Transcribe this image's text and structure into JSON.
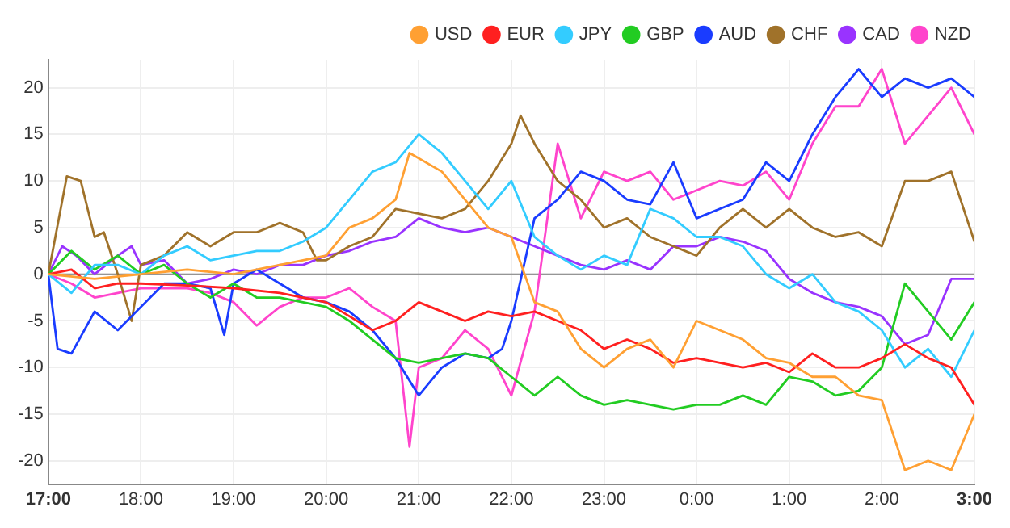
{
  "chart_data": {
    "type": "line",
    "xlim": [
      "--01-01T17:00",
      "--01-02T03:00"
    ],
    "xticks": [
      {
        "value": "--01-01T17:00",
        "label": "17:00"
      },
      {
        "value": "--01-01T18:00",
        "label": "18:00"
      },
      {
        "value": "--01-01T19:00",
        "label": "19:00"
      },
      {
        "value": "--01-01T20:00",
        "label": "20:00"
      },
      {
        "value": "--01-01T21:00",
        "label": "21:00"
      },
      {
        "value": "--01-01T22:00",
        "label": "22:00"
      },
      {
        "value": "--01-01T23:00",
        "label": "23:00"
      },
      {
        "value": "--01-02T00:00",
        "label": "0:00"
      },
      {
        "value": "--01-02T01:00",
        "label": "1:00"
      },
      {
        "value": "--01-02T02:00",
        "label": "2:00"
      },
      {
        "value": "--01-02T03:00",
        "label": "3:00"
      }
    ],
    "ylim": [
      -22.5,
      23
    ],
    "yticks": [
      -20,
      -15,
      -10,
      -5,
      0,
      5,
      10,
      15,
      20
    ],
    "grid": true,
    "legend": "top right",
    "marker": "none",
    "line_style": "solid",
    "ref_lines": [
      {
        "axis": "y",
        "value": 0,
        "color": "#777777"
      }
    ],
    "series": [
      {
        "name": "USD",
        "color": "#ffa033",
        "x": [
          "--01-01T17:00",
          "--01-01T17:30",
          "--01-01T18:00",
          "--01-01T18:30",
          "--01-01T19:00",
          "--01-01T19:30",
          "--01-01T19:45",
          "--01-01T20:00",
          "--01-01T20:15",
          "--01-01T20:30",
          "--01-01T20:45",
          "--01-01T20:54",
          "--01-01T21:15",
          "--01-01T21:30",
          "--01-01T21:45",
          "--01-01T22:00",
          "--01-01T22:15",
          "--01-01T22:30",
          "--01-01T22:45",
          "--01-01T23:00",
          "--01-01T23:15",
          "--01-01T23:30",
          "--01-01T23:45",
          "--01-02T00:00",
          "--01-02T00:15",
          "--01-02T00:30",
          "--01-02T00:45",
          "--01-02T01:00",
          "--01-02T01:15",
          "--01-02T01:30",
          "--01-02T01:45",
          "--01-02T02:00",
          "--01-02T02:15",
          "--01-02T02:30",
          "--01-02T02:45",
          "--01-02T03:00"
        ],
        "values": [
          0,
          -0.5,
          0,
          0.5,
          0,
          1,
          1.5,
          2,
          5,
          6,
          8,
          13,
          11,
          8,
          5,
          4,
          -3,
          -4,
          -8,
          -10,
          -8,
          -7,
          -10,
          -5,
          -6,
          -7,
          -9,
          -9.5,
          -11,
          -11,
          -13,
          -13.5,
          -21,
          -20,
          -21,
          -15
        ]
      },
      {
        "name": "EUR",
        "color": "#ff2020",
        "x": [
          "--01-01T17:00",
          "--01-01T17:15",
          "--01-01T17:30",
          "--01-01T17:45",
          "--01-01T18:00",
          "--01-01T18:30",
          "--01-01T19:00",
          "--01-01T19:30",
          "--01-01T20:00",
          "--01-01T20:15",
          "--01-01T20:30",
          "--01-01T20:45",
          "--01-01T21:00",
          "--01-01T21:15",
          "--01-01T21:30",
          "--01-01T21:45",
          "--01-01T22:00",
          "--01-01T22:15",
          "--01-01T22:30",
          "--01-01T22:45",
          "--01-01T23:00",
          "--01-01T23:15",
          "--01-01T23:30",
          "--01-01T23:45",
          "--01-02T00:00",
          "--01-02T00:15",
          "--01-02T00:30",
          "--01-02T00:45",
          "--01-02T01:00",
          "--01-02T01:15",
          "--01-02T01:30",
          "--01-02T01:45",
          "--01-02T02:00",
          "--01-02T02:15",
          "--01-02T02:30",
          "--01-02T02:45",
          "--01-02T03:00"
        ],
        "values": [
          0,
          0.5,
          -1.5,
          -1,
          -1,
          -1.2,
          -1.5,
          -2,
          -3,
          -4.5,
          -6,
          -5,
          -3,
          -4,
          -5,
          -4,
          -4.5,
          -4,
          -5,
          -6,
          -8,
          -7,
          -8,
          -9.5,
          -9,
          -9.5,
          -10,
          -9.5,
          -10.5,
          -8.5,
          -10,
          -10,
          -9,
          -7.5,
          -9,
          -10,
          -14
        ]
      },
      {
        "name": "JPY",
        "color": "#33ccff",
        "x": [
          "--01-01T17:00",
          "--01-01T17:15",
          "--01-01T17:30",
          "--01-01T17:45",
          "--01-01T18:00",
          "--01-01T18:15",
          "--01-01T18:30",
          "--01-01T18:45",
          "--01-01T19:00",
          "--01-01T19:15",
          "--01-01T19:30",
          "--01-01T19:45",
          "--01-01T20:00",
          "--01-01T20:15",
          "--01-01T20:30",
          "--01-01T20:45",
          "--01-01T21:00",
          "--01-01T21:15",
          "--01-01T21:30",
          "--01-01T21:45",
          "--01-01T22:00",
          "--01-01T22:15",
          "--01-01T22:30",
          "--01-01T22:45",
          "--01-01T23:00",
          "--01-01T23:15",
          "--01-01T23:30",
          "--01-01T23:45",
          "--01-02T00:00",
          "--01-02T00:15",
          "--01-02T00:30",
          "--01-02T00:45",
          "--01-02T01:00",
          "--01-02T01:15",
          "--01-02T01:30",
          "--01-02T01:45",
          "--01-02T02:00",
          "--01-02T02:15",
          "--01-02T02:30",
          "--01-02T02:45",
          "--01-02T03:00"
        ],
        "values": [
          0,
          -2,
          1,
          1,
          0,
          2,
          3,
          1.5,
          2,
          2.5,
          2.5,
          3.5,
          5,
          8,
          11,
          12,
          15,
          13,
          10,
          7,
          10,
          4,
          2,
          0.5,
          2,
          1,
          7,
          6,
          4,
          4,
          3,
          0,
          -1.5,
          0,
          -3,
          -4,
          -6,
          -10,
          -8,
          -11,
          -6
        ]
      },
      {
        "name": "GBP",
        "color": "#22cc22",
        "x": [
          "--01-01T17:00",
          "--01-01T17:15",
          "--01-01T17:30",
          "--01-01T17:45",
          "--01-01T18:00",
          "--01-01T18:15",
          "--01-01T18:30",
          "--01-01T18:45",
          "--01-01T19:00",
          "--01-01T19:15",
          "--01-01T19:30",
          "--01-01T19:45",
          "--01-01T20:00",
          "--01-01T20:15",
          "--01-01T20:30",
          "--01-01T20:45",
          "--01-01T21:00",
          "--01-01T21:15",
          "--01-01T21:30",
          "--01-01T21:45",
          "--01-01T22:00",
          "--01-01T22:15",
          "--01-01T22:30",
          "--01-01T22:45",
          "--01-01T23:00",
          "--01-01T23:15",
          "--01-01T23:30",
          "--01-01T23:45",
          "--01-02T00:00",
          "--01-02T00:15",
          "--01-02T00:30",
          "--01-02T00:45",
          "--01-02T01:00",
          "--01-02T01:15",
          "--01-02T01:30",
          "--01-02T01:45",
          "--01-02T02:00",
          "--01-02T02:15",
          "--01-02T02:30",
          "--01-02T02:45",
          "--01-02T03:00"
        ],
        "values": [
          0,
          2.5,
          0.5,
          2,
          0,
          1,
          -1,
          -2.5,
          -1,
          -2.5,
          -2.5,
          -3,
          -3.5,
          -5,
          -7,
          -9,
          -9.5,
          -9,
          -8.5,
          -9,
          -11,
          -13,
          -11,
          -13,
          -14,
          -13.5,
          -14,
          -14.5,
          -14,
          -14,
          -13,
          -14,
          -11,
          -11.5,
          -13,
          -12.5,
          -10,
          -1,
          -4,
          -7,
          -3
        ]
      },
      {
        "name": "AUD",
        "color": "#1a3cff",
        "x": [
          "--01-01T17:00",
          "--01-01T17:06",
          "--01-01T17:15",
          "--01-01T17:30",
          "--01-01T17:45",
          "--01-01T18:00",
          "--01-01T18:15",
          "--01-01T18:30",
          "--01-01T18:45",
          "--01-01T18:54",
          "--01-01T19:00",
          "--01-01T19:15",
          "--01-01T19:30",
          "--01-01T19:45",
          "--01-01T20:00",
          "--01-01T20:15",
          "--01-01T20:30",
          "--01-01T20:45",
          "--01-01T21:00",
          "--01-01T21:15",
          "--01-01T21:30",
          "--01-01T21:45",
          "--01-01T21:54",
          "--01-01T22:00",
          "--01-01T22:15",
          "--01-01T22:30",
          "--01-01T22:45",
          "--01-01T23:00",
          "--01-01T23:15",
          "--01-01T23:30",
          "--01-01T23:45",
          "--01-02T00:00",
          "--01-02T00:15",
          "--01-02T00:30",
          "--01-02T00:45",
          "--01-02T01:00",
          "--01-02T01:15",
          "--01-02T01:30",
          "--01-02T01:45",
          "--01-02T02:00",
          "--01-02T02:15",
          "--01-02T02:30",
          "--01-02T02:45",
          "--01-02T03:00"
        ],
        "values": [
          0,
          -8,
          -8.5,
          -4,
          -6,
          -3.5,
          -1,
          -1,
          -1.5,
          -6.5,
          -1,
          0.5,
          -1,
          -2.5,
          -3,
          -4,
          -6,
          -9,
          -13,
          -10,
          -8.5,
          -9,
          -8,
          -5,
          6,
          8,
          11,
          10,
          8,
          7.5,
          12,
          6,
          7,
          8,
          12,
          10,
          15,
          19,
          22,
          19,
          21,
          20,
          21,
          19
        ]
      },
      {
        "name": "CHF",
        "color": "#a0722a",
        "x": [
          "--01-01T17:00",
          "--01-01T17:12",
          "--01-01T17:21",
          "--01-01T17:30",
          "--01-01T17:36",
          "--01-01T17:45",
          "--01-01T17:54",
          "--01-01T18:00",
          "--01-01T18:15",
          "--01-01T18:30",
          "--01-01T18:45",
          "--01-01T19:00",
          "--01-01T19:15",
          "--01-01T19:30",
          "--01-01T19:45",
          "--01-01T19:54",
          "--01-01T20:00",
          "--01-01T20:15",
          "--01-01T20:30",
          "--01-01T20:45",
          "--01-01T21:00",
          "--01-01T21:15",
          "--01-01T21:30",
          "--01-01T21:45",
          "--01-01T22:00",
          "--01-01T22:06",
          "--01-01T22:15",
          "--01-01T22:30",
          "--01-01T22:45",
          "--01-01T23:00",
          "--01-01T23:15",
          "--01-01T23:30",
          "--01-01T23:45",
          "--01-02T00:00",
          "--01-02T00:15",
          "--01-02T00:30",
          "--01-02T00:45",
          "--01-02T01:00",
          "--01-02T01:15",
          "--01-02T01:30",
          "--01-02T01:45",
          "--01-02T02:00",
          "--01-02T02:15",
          "--01-02T02:30",
          "--01-02T02:45",
          "--01-02T03:00"
        ],
        "values": [
          0,
          10.5,
          10,
          4,
          4.5,
          0,
          -5,
          1,
          2,
          4.5,
          3,
          4.5,
          4.5,
          5.5,
          4.5,
          1.5,
          1.5,
          3,
          4,
          7,
          6.5,
          6,
          7,
          10,
          14,
          17,
          14,
          10,
          8,
          5,
          6,
          4,
          3,
          2,
          5,
          7,
          5,
          7,
          5,
          4,
          4.5,
          3,
          10,
          10,
          11,
          3.5
        ]
      },
      {
        "name": "CAD",
        "color": "#9933ff",
        "x": [
          "--01-01T17:00",
          "--01-01T17:09",
          "--01-01T17:18",
          "--01-01T17:30",
          "--01-01T17:45",
          "--01-01T17:54",
          "--01-01T18:00",
          "--01-01T18:15",
          "--01-01T18:30",
          "--01-01T18:45",
          "--01-01T19:00",
          "--01-01T19:15",
          "--01-01T19:30",
          "--01-01T19:45",
          "--01-01T20:00",
          "--01-01T20:15",
          "--01-01T20:30",
          "--01-01T20:45",
          "--01-01T21:00",
          "--01-01T21:15",
          "--01-01T21:30",
          "--01-01T21:45",
          "--01-01T22:00",
          "--01-01T22:15",
          "--01-01T22:30",
          "--01-01T22:45",
          "--01-01T23:00",
          "--01-01T23:15",
          "--01-01T23:30",
          "--01-01T23:45",
          "--01-02T00:00",
          "--01-02T00:15",
          "--01-02T00:30",
          "--01-02T00:45",
          "--01-02T01:00",
          "--01-02T01:15",
          "--01-02T01:30",
          "--01-02T01:45",
          "--01-02T02:00",
          "--01-02T02:15",
          "--01-02T02:30",
          "--01-02T02:45",
          "--01-02T03:00"
        ],
        "values": [
          0,
          3,
          2,
          0,
          2,
          3,
          1,
          1.5,
          -1,
          -0.5,
          0.5,
          0,
          1,
          1,
          2,
          2.5,
          3.5,
          4,
          6,
          5,
          4.5,
          5,
          4,
          3,
          2,
          1,
          0.5,
          1.5,
          0.5,
          3,
          3,
          4,
          3.5,
          2.5,
          -0.5,
          -2,
          -3,
          -3.5,
          -4.5,
          -7.5,
          -6.5,
          -0.5,
          -0.5
        ]
      },
      {
        "name": "NZD",
        "color": "#ff44cc",
        "x": [
          "--01-01T17:00",
          "--01-01T17:15",
          "--01-01T17:30",
          "--01-01T17:45",
          "--01-01T18:00",
          "--01-01T18:15",
          "--01-01T18:30",
          "--01-01T18:45",
          "--01-01T19:00",
          "--01-01T19:15",
          "--01-01T19:30",
          "--01-01T19:45",
          "--01-01T20:00",
          "--01-01T20:15",
          "--01-01T20:30",
          "--01-01T20:45",
          "--01-01T20:54",
          "--01-01T21:00",
          "--01-01T21:15",
          "--01-01T21:30",
          "--01-01T21:45",
          "--01-01T22:00",
          "--01-01T22:15",
          "--01-01T22:30",
          "--01-01T22:45",
          "--01-01T23:00",
          "--01-01T23:15",
          "--01-01T23:30",
          "--01-01T23:45",
          "--01-02T00:00",
          "--01-02T00:15",
          "--01-02T00:30",
          "--01-02T00:45",
          "--01-02T01:00",
          "--01-02T01:15",
          "--01-02T01:30",
          "--01-02T01:45",
          "--01-02T02:00",
          "--01-02T02:15",
          "--01-02T02:30",
          "--01-02T02:45",
          "--01-02T03:00"
        ],
        "values": [
          0,
          -1,
          -2.5,
          -2,
          -1.5,
          -1.5,
          -1.5,
          -2,
          -3,
          -5.5,
          -3.5,
          -2.5,
          -2.5,
          -1.5,
          -3.5,
          -5,
          -18.5,
          -10,
          -9,
          -6,
          -8,
          -13,
          -4,
          14,
          6,
          11,
          10,
          11,
          8,
          9,
          10,
          9.5,
          11,
          8,
          14,
          18,
          18,
          22,
          14,
          17,
          20,
          15
        ]
      }
    ]
  }
}
